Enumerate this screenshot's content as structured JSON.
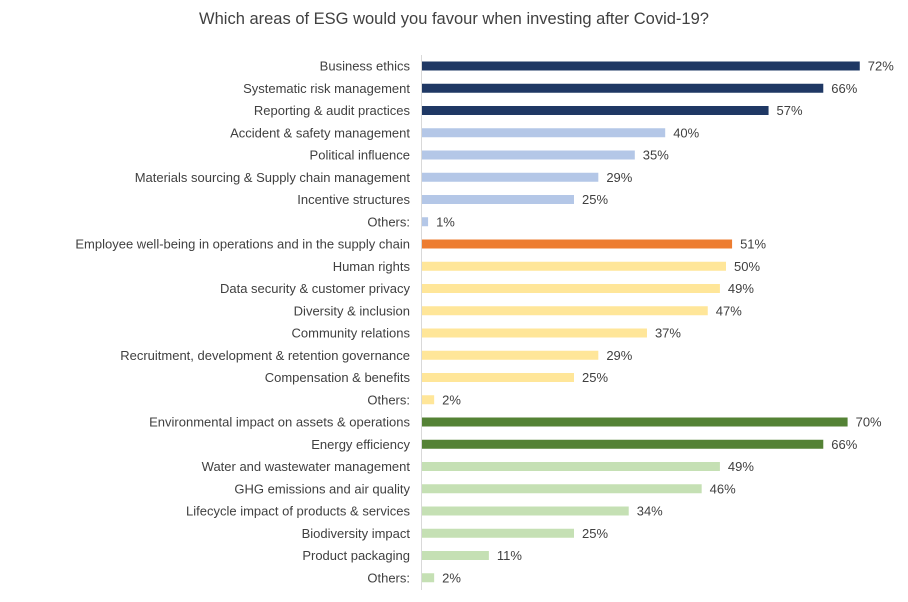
{
  "chart_data": {
    "type": "bar",
    "orientation": "horizontal",
    "title": "Which areas of ESG would you favour when investing after Covid-19?",
    "xlim": [
      0,
      100
    ],
    "grid": false,
    "legend": "none",
    "value_suffix": "%",
    "categories": [
      "Business ethics",
      "Systematic risk management",
      "Reporting & audit practices",
      "Accident & safety management",
      "Political influence",
      "Materials sourcing & Supply chain management",
      "Incentive structures",
      "Others:",
      "Employee well-being in operations and in the supply chain",
      "Human rights",
      "Data security & customer privacy",
      "Diversity & inclusion",
      "Community relations",
      "Recruitment, development & retention governance",
      "Compensation & benefits",
      "Others:",
      "Environmental impact on assets & operations",
      "Energy efficiency",
      "Water and wastewater management",
      "GHG emissions and air quality",
      "Lifecycle impact of products & services",
      "Biodiversity impact",
      "Product packaging",
      "Others:"
    ],
    "values": [
      72,
      66,
      57,
      40,
      35,
      29,
      25,
      1,
      51,
      50,
      49,
      47,
      37,
      29,
      25,
      2,
      70,
      66,
      49,
      46,
      34,
      25,
      11,
      2
    ],
    "colors": [
      "#1f3864",
      "#1f3864",
      "#1f3864",
      "#b4c7e7",
      "#b4c7e7",
      "#b4c7e7",
      "#b4c7e7",
      "#b4c7e7",
      "#ed7d31",
      "#ffe699",
      "#ffe699",
      "#ffe699",
      "#ffe699",
      "#ffe699",
      "#ffe699",
      "#ffe699",
      "#548235",
      "#548235",
      "#c5e0b4",
      "#c5e0b4",
      "#c5e0b4",
      "#c5e0b4",
      "#c5e0b4",
      "#c5e0b4"
    ]
  }
}
